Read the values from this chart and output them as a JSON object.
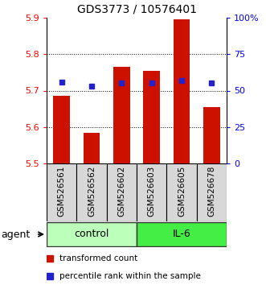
{
  "title": "GDS3773 / 10576401",
  "samples": [
    "GSM526561",
    "GSM526562",
    "GSM526602",
    "GSM526603",
    "GSM526605",
    "GSM526678"
  ],
  "bar_values": [
    5.685,
    5.585,
    5.765,
    5.755,
    5.895,
    5.655
  ],
  "bar_bottom": 5.5,
  "pct_positions": [
    5.723,
    5.712,
    5.722,
    5.722,
    5.728,
    5.722
  ],
  "bar_color": "#cc1100",
  "percentile_color": "#2222cc",
  "ylim_left": [
    5.5,
    5.9
  ],
  "ylim_right": [
    0,
    100
  ],
  "yticks_left": [
    5.5,
    5.6,
    5.7,
    5.8,
    5.9
  ],
  "yticks_right": [
    0,
    25,
    50,
    75,
    100
  ],
  "ytick_labels_right": [
    "0",
    "25",
    "50",
    "75",
    "100%"
  ],
  "grid_values": [
    5.6,
    5.7,
    5.8
  ],
  "group_control_color": "#bbffbb",
  "group_il6_color": "#44ee44",
  "sample_bg_color": "#d8d8d8",
  "agent_label": "agent",
  "legend_bar_label": "transformed count",
  "legend_pct_label": "percentile rank within the sample",
  "title_fontsize": 10,
  "tick_fontsize": 8,
  "label_fontsize": 7.5,
  "group_fontsize": 9,
  "legend_fontsize": 7.5
}
